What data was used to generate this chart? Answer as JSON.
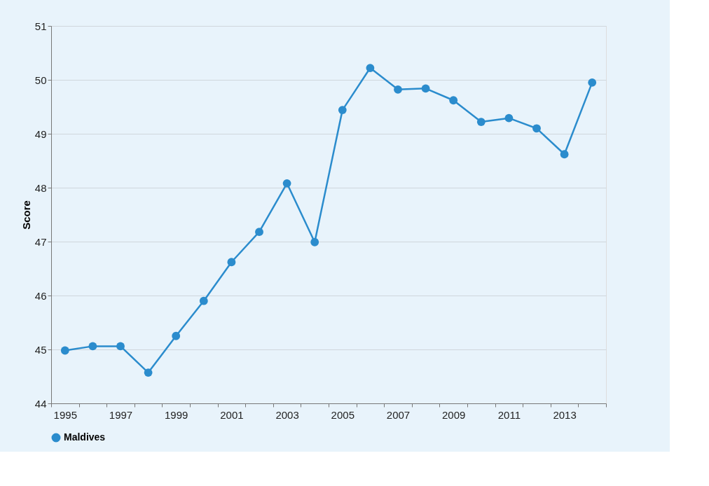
{
  "chart_data": {
    "type": "line",
    "ylabel": "Score",
    "categories": [
      "1995",
      null,
      "1997",
      null,
      "1999",
      null,
      "2001",
      null,
      "2003",
      null,
      "2005",
      null,
      "2007",
      null,
      "2009",
      null,
      "2011",
      null,
      "2013",
      null
    ],
    "series": [
      {
        "name": "Maldives",
        "color": "#2b8ccd",
        "values": [
          44.98,
          45.06,
          45.06,
          44.57,
          45.25,
          45.9,
          46.62,
          47.18,
          48.08,
          46.99,
          49.44,
          50.22,
          49.82,
          49.84,
          49.62,
          49.22,
          49.29,
          49.1,
          48.62,
          49.95
        ]
      }
    ],
    "ylim": [
      44,
      51
    ],
    "yticks": [
      44,
      45,
      46,
      47,
      48,
      49,
      50,
      51
    ],
    "grid": "y",
    "legend": "bottom left",
    "marker": "circle",
    "line_style": "solid"
  }
}
